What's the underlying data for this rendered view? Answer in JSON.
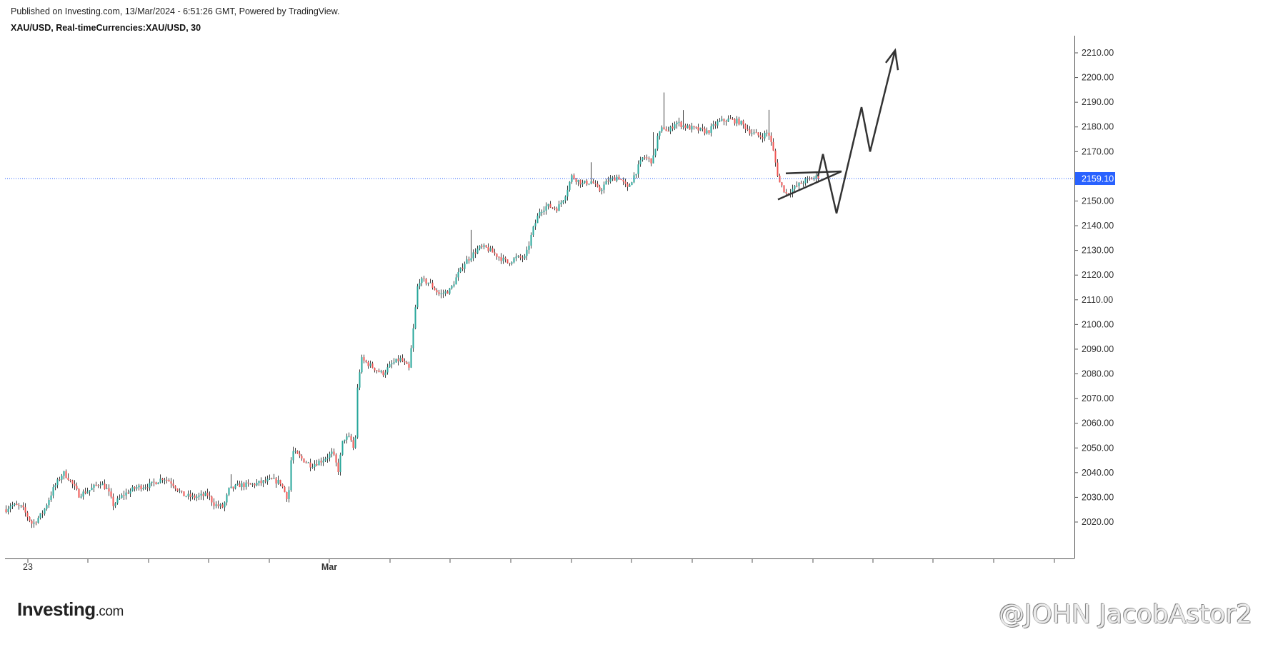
{
  "header": {
    "published": "Published on Investing.com, 13/Mar/2024 - 6:51:26 GMT, Powered by TradingView.",
    "symbol": "XAU/USD, Real-timeCurrencies:XAU/USD, 30"
  },
  "logo": {
    "brand": "Investing",
    "suffix": ".com"
  },
  "watermark": "@JOHN JacobAstor2",
  "colors": {
    "up": "#26a69a",
    "down": "#ef5350",
    "wick": "#3d3d3d",
    "last_price_line": "#2962ff",
    "price_tag_bg": "#2962ff",
    "drawing": "#333333",
    "axis": "#555555"
  },
  "chart_data": {
    "type": "candlestick",
    "symbol": "XAU/USD",
    "interval": "30",
    "y_axis": {
      "position": "right",
      "ticks": [
        "2020.00",
        "2030.00",
        "2040.00",
        "2050.00",
        "2060.00",
        "2070.00",
        "2080.00",
        "2090.00",
        "2100.00",
        "2110.00",
        "2120.00",
        "2130.00",
        "2140.00",
        "2150.00",
        "2160.00",
        "2170.00",
        "2180.00",
        "2190.00",
        "2200.00",
        "2210.00"
      ],
      "ylim": [
        2006,
        2226
      ]
    },
    "x_axis": {
      "labels": [
        "23",
        "Mar"
      ]
    },
    "last_price": "2159.10",
    "price_path": [
      [
        0,
        2023
      ],
      [
        15,
        2027
      ],
      [
        30,
        2026
      ],
      [
        45,
        2019
      ],
      [
        60,
        2024
      ],
      [
        75,
        2034
      ],
      [
        88,
        2040
      ],
      [
        95,
        2038
      ],
      [
        110,
        2031
      ],
      [
        125,
        2033
      ],
      [
        140,
        2036
      ],
      [
        150,
        2033
      ],
      [
        158,
        2027
      ],
      [
        172,
        2031
      ],
      [
        190,
        2034
      ],
      [
        210,
        2035
      ],
      [
        228,
        2038
      ],
      [
        240,
        2036
      ],
      [
        255,
        2031
      ],
      [
        270,
        2030
      ],
      [
        290,
        2031
      ],
      [
        300,
        2027
      ],
      [
        312,
        2026
      ],
      [
        320,
        2033
      ],
      [
        335,
        2035
      ],
      [
        350,
        2035
      ],
      [
        365,
        2036
      ],
      [
        380,
        2037
      ],
      [
        392,
        2036
      ],
      [
        403,
        2029
      ],
      [
        408,
        2049
      ],
      [
        420,
        2046
      ],
      [
        435,
        2043
      ],
      [
        450,
        2045
      ],
      [
        465,
        2048
      ],
      [
        473,
        2041
      ],
      [
        480,
        2054
      ],
      [
        490,
        2054
      ],
      [
        496,
        2048
      ],
      [
        500,
        2074
      ],
      [
        505,
        2086
      ],
      [
        520,
        2083
      ],
      [
        535,
        2080
      ],
      [
        548,
        2084
      ],
      [
        560,
        2086
      ],
      [
        572,
        2082
      ],
      [
        578,
        2098
      ],
      [
        585,
        2118
      ],
      [
        600,
        2117
      ],
      [
        615,
        2112
      ],
      [
        630,
        2114
      ],
      [
        640,
        2120
      ],
      [
        650,
        2125
      ],
      [
        660,
        2128
      ],
      [
        670,
        2131
      ],
      [
        680,
        2131
      ],
      [
        695,
        2128
      ],
      [
        710,
        2125
      ],
      [
        722,
        2127
      ],
      [
        735,
        2127
      ],
      [
        745,
        2138
      ],
      [
        755,
        2146
      ],
      [
        765,
        2148
      ],
      [
        780,
        2147
      ],
      [
        790,
        2152
      ],
      [
        800,
        2160
      ],
      [
        815,
        2157
      ],
      [
        828,
        2158
      ],
      [
        838,
        2154
      ],
      [
        850,
        2158
      ],
      [
        865,
        2160
      ],
      [
        878,
        2155
      ],
      [
        890,
        2162
      ],
      [
        900,
        2168
      ],
      [
        913,
        2166
      ],
      [
        920,
        2176
      ],
      [
        928,
        2180
      ],
      [
        935,
        2178
      ],
      [
        945,
        2182
      ],
      [
        960,
        2180
      ],
      [
        975,
        2179
      ],
      [
        990,
        2178
      ],
      [
        1005,
        2182
      ],
      [
        1020,
        2183
      ],
      [
        1035,
        2182
      ],
      [
        1050,
        2178
      ],
      [
        1065,
        2176
      ],
      [
        1075,
        2178
      ],
      [
        1082,
        2170
      ],
      [
        1090,
        2158
      ],
      [
        1100,
        2153
      ],
      [
        1110,
        2155
      ],
      [
        1125,
        2158
      ],
      [
        1145,
        2160
      ]
    ],
    "drawings": {
      "triangle_top": [
        [
          1100,
          2161.2
        ],
        [
          1178,
          2162.0
        ]
      ],
      "triangle_bottom": [
        [
          1089,
          2150.6
        ],
        [
          1178,
          2162.0
        ]
      ],
      "zigzag": [
        [
          1145,
          2160
        ],
        [
          1152,
          2169
        ],
        [
          1171,
          2145
        ],
        [
          1206,
          2188
        ],
        [
          1218,
          2170
        ],
        [
          1253,
          2211
        ]
      ],
      "arrowhead": [
        [
          1240,
          2206
        ],
        [
          1253,
          2211
        ],
        [
          1257,
          2203
        ]
      ]
    }
  }
}
